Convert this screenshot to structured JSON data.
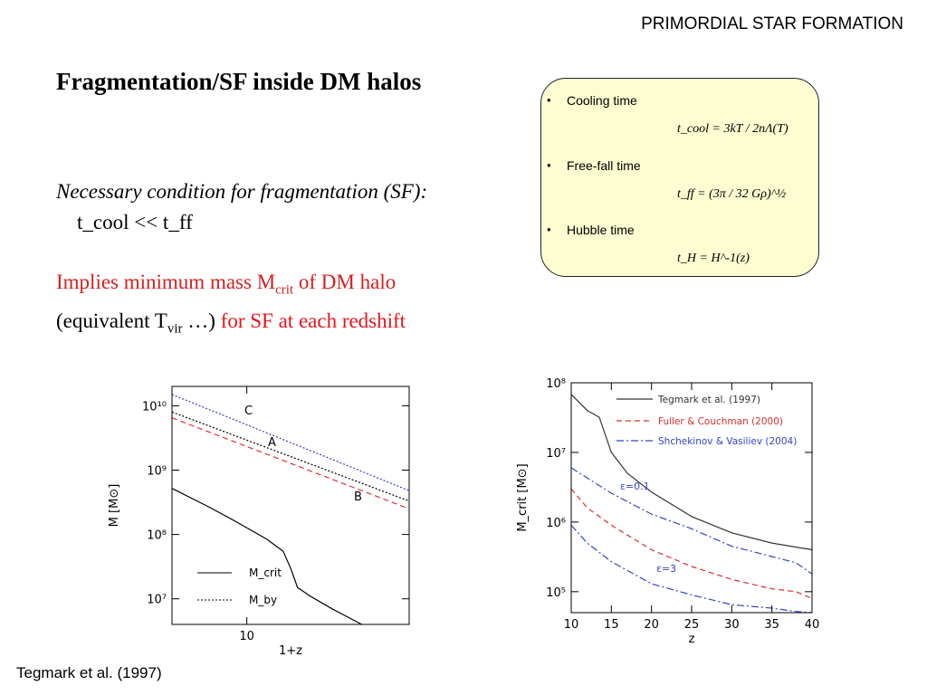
{
  "header": "PRIMORDIAL STAR FORMATION",
  "title": "Fragmentation/SF inside DM halos",
  "condition": {
    "label": "Necessary condition for fragmentation (SF):",
    "expr": "t_cool << t_ff"
  },
  "implies": {
    "line1_prefix": "Implies minimum mass M",
    "line1_sub": "crit",
    "line1_suffix": " of DM halo",
    "line2_prefix": "(equivalent T",
    "line2_sub": "vir",
    "line2_mid": " …) ",
    "line2_red": "for SF at each redshift"
  },
  "timescales": {
    "items": [
      {
        "name": "Cooling time",
        "formula": "t_cool = 3kT / 2nΛ(T)"
      },
      {
        "name": "Free-fall time",
        "formula": "t_ff = (3π / 32 Gρ)^½"
      },
      {
        "name": "Hubble time",
        "formula": "t_H = H^-1(z)"
      }
    ]
  },
  "citation": "Tegmark et al. (1997)",
  "chart_data": [
    {
      "type": "line",
      "xlabel": "1+z",
      "ylabel": "M [M⊙]",
      "xscale": "log",
      "yscale": "log",
      "xlim": [
        5,
        45
      ],
      "ylim": [
        4000000,
        20000000000
      ],
      "x_tick_labels": [
        "10"
      ],
      "y_tick_labels": [
        "10¹⁰",
        "10⁹",
        "10⁸",
        "10⁷"
      ],
      "annotations": [
        "C",
        "A",
        "B"
      ],
      "legend": [
        "M_crit",
        "M_by"
      ],
      "series": [
        {
          "name": "M_crit",
          "style": "solid",
          "color": "#000000",
          "x": [
            5,
            7,
            9,
            12,
            14,
            15,
            16,
            18,
            22,
            29
          ],
          "y": [
            520000000,
            270000000,
            160000000,
            85000000,
            55000000,
            30000000,
            15000000,
            11000000,
            7000000,
            4000000
          ]
        },
        {
          "name": "C",
          "style": "dotted",
          "color": "#3a3ad8",
          "x": [
            5,
            45
          ],
          "y": [
            15000000000,
            480000000
          ]
        },
        {
          "name": "A",
          "style": "dotted",
          "color": "#000000",
          "x": [
            5,
            45
          ],
          "y": [
            8000000000,
            330000000
          ]
        },
        {
          "name": "B",
          "style": "dashed",
          "color": "#e03030",
          "x": [
            5,
            45
          ],
          "y": [
            6500000000,
            250000000
          ]
        }
      ],
      "legend_placement": "lower-left"
    },
    {
      "type": "line",
      "xlabel": "z",
      "ylabel": "M_crit [M⊙]",
      "xscale": "linear",
      "yscale": "log",
      "xlim": [
        10,
        40
      ],
      "ylim": [
        50000,
        100000000
      ],
      "x_tick_labels": [
        "10",
        "15",
        "20",
        "25",
        "30",
        "35",
        "40"
      ],
      "y_tick_labels": [
        "10⁸",
        "10⁷",
        "10⁶",
        "10⁵"
      ],
      "annotations": [
        "ε=0.1",
        "ε=3"
      ],
      "legend_placement": "top-right",
      "series": [
        {
          "name": "Tegmark et al. (1997)",
          "style": "solid",
          "color": "#333333",
          "x": [
            10,
            12,
            13.5,
            15,
            17,
            20,
            25,
            30,
            35,
            40
          ],
          "y": [
            68000000,
            40000000,
            32000000,
            10000000,
            5000000,
            2700000,
            1200000,
            700000,
            500000,
            400000
          ]
        },
        {
          "name": "Fuller & Couchman (2000)",
          "style": "dashed",
          "color": "#d83030",
          "x": [
            10,
            12,
            15,
            20,
            25,
            30,
            35,
            38,
            40
          ],
          "y": [
            3000000,
            1600000,
            900000,
            400000,
            230000,
            150000,
            110000,
            100000,
            80000
          ]
        },
        {
          "name": "Shchekinov & Vasiliev (2004)",
          "style": "dashdot",
          "color": "#3344cc",
          "x": [
            10,
            15,
            20,
            25,
            30,
            35,
            38,
            40
          ],
          "y": [
            6000000,
            2600000,
            1300000,
            800000,
            450000,
            320000,
            260000,
            180000
          ]
        },
        {
          "name": "",
          "style": "dashdot",
          "color": "#3344cc",
          "x": [
            10,
            12,
            15,
            20,
            25,
            30,
            35,
            38,
            40
          ],
          "y": [
            900000,
            500000,
            270000,
            130000,
            90000,
            65000,
            58000,
            52000,
            50000
          ]
        }
      ]
    }
  ]
}
